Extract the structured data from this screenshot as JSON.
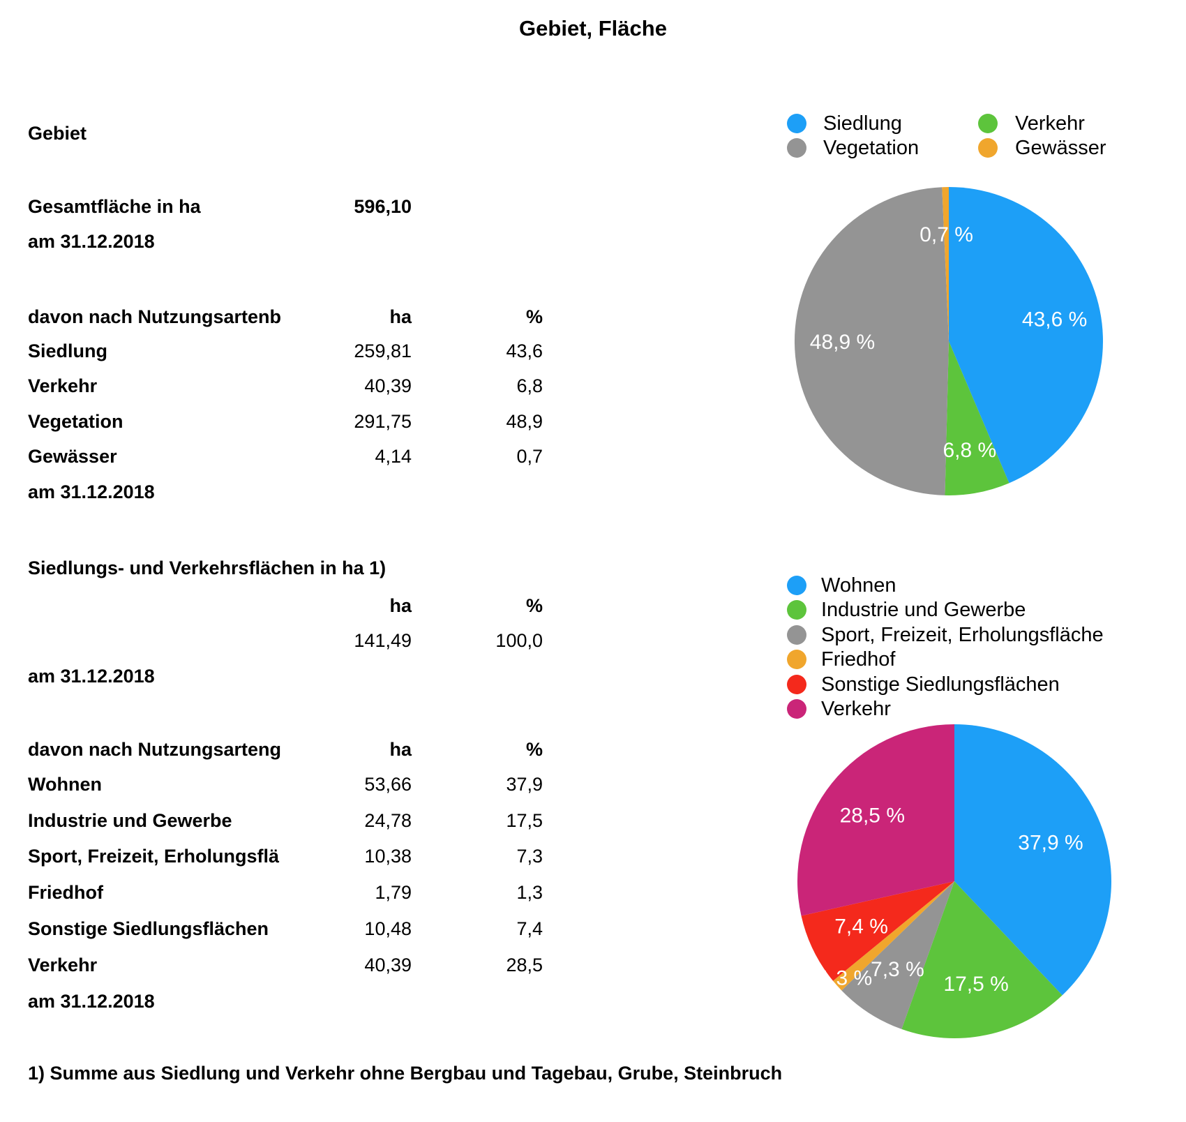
{
  "title": "Gebiet, Fläche",
  "report": {
    "section1": {
      "heading": "Gebiet",
      "total_label": "Gesamtfläche in ha",
      "total_value": "596,10",
      "date1": "am 31.12.2018",
      "table": {
        "header": {
          "label": "davon nach Nutzungsartenb",
          "col_ha": "ha",
          "col_pct": "%"
        },
        "rows": [
          {
            "label": "Siedlung",
            "ha": "259,81",
            "pct": "43,6"
          },
          {
            "label": "Verkehr",
            "ha": "40,39",
            "pct": "6,8"
          },
          {
            "label": "Vegetation",
            "ha": "291,75",
            "pct": "48,9"
          },
          {
            "label": "Gewässer",
            "ha": "4,14",
            "pct": "0,7"
          }
        ],
        "date": "am 31.12.2018"
      }
    },
    "section2": {
      "heading": "Siedlungs- und Verkehrsflächen in ha 1)",
      "header": {
        "col_ha": "ha",
        "col_pct": "%"
      },
      "total_row": {
        "ha": "141,49",
        "pct": "100,0"
      },
      "date1": "am 31.12.2018",
      "table": {
        "header": {
          "label": "davon nach Nutzungsarteng",
          "col_ha": "ha",
          "col_pct": "%"
        },
        "rows": [
          {
            "label": "Wohnen",
            "ha": "53,66",
            "pct": "37,9"
          },
          {
            "label": "Industrie und Gewerbe",
            "ha": "24,78",
            "pct": "17,5"
          },
          {
            "label": "Sport, Freizeit, Erholungsflä",
            "ha": "10,38",
            "pct": "7,3"
          },
          {
            "label": "Friedhof",
            "ha": "1,79",
            "pct": "1,3"
          },
          {
            "label": "Sonstige Siedlungsflächen",
            "ha": "10,48",
            "pct": "7,4"
          },
          {
            "label": "Verkehr",
            "ha": "40,39",
            "pct": "28,5"
          }
        ],
        "date": "am 31.12.2018"
      }
    },
    "footnote": "1) Summe aus Siedlung und Verkehr ohne Bergbau und Tagebau, Grube, Steinbruch"
  },
  "chart_data": [
    {
      "type": "pie",
      "categories": [
        "Siedlung",
        "Verkehr",
        "Vegetation",
        "Gewässer"
      ],
      "values": [
        43.6,
        6.8,
        48.9,
        0.7
      ],
      "unit": "%",
      "slice_labels": [
        "43,6 %",
        "6,8 %",
        "48,9 %",
        "0,7 %"
      ],
      "colors": [
        "#1D9FF7",
        "#5DC43C",
        "#949494",
        "#F0A62D"
      ],
      "legend": [
        "Siedlung",
        "Verkehr",
        "Vegetation",
        "Gewässer"
      ],
      "legend_position": "top",
      "legend_layout": "grid-2col",
      "start_angle_deg": 0,
      "direction": "clockwise"
    },
    {
      "type": "pie",
      "categories": [
        "Wohnen",
        "Industrie und Gewerbe",
        "Sport, Freizeit, Erholungsfläche",
        "Friedhof",
        "Sonstige Siedlungsflächen",
        "Verkehr"
      ],
      "values": [
        37.9,
        17.5,
        7.3,
        1.3,
        7.4,
        28.5
      ],
      "unit": "%",
      "slice_labels": [
        "37,9 %",
        "17,5 %",
        "7,3 %",
        "1,3 %",
        "7,4 %",
        "28,5 %"
      ],
      "colors": [
        "#1D9FF7",
        "#5DC43C",
        "#949494",
        "#F0A62D",
        "#F4291C",
        "#CA2578"
      ],
      "legend": [
        "Wohnen",
        "Industrie und Gewerbe",
        "Sport, Freizeit, Erholungsfläche",
        "Friedhof",
        "Sonstige Siedlungsflächen",
        "Verkehr"
      ],
      "legend_position": "top-left",
      "legend_layout": "list",
      "start_angle_deg": 0,
      "direction": "clockwise"
    }
  ]
}
